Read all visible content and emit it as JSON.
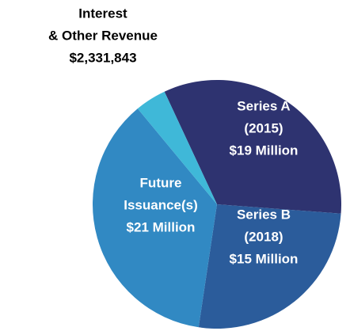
{
  "chart_data": {
    "type": "pie",
    "categories": [
      [
        "Series A",
        "(2015)"
      ],
      [
        "Series B",
        "(2018)"
      ],
      [
        "Future",
        "Issuance(s)"
      ],
      [
        "Interest",
        "& Other Revenue"
      ]
    ],
    "values": [
      19000000,
      15000000,
      21000000,
      2331843
    ],
    "value_labels": [
      "$19 Million",
      "$15 Million",
      "$21 Million",
      "$2,331,843"
    ],
    "colors": [
      "#2e3370",
      "#2b5c9b",
      "#3189c3",
      "#3fb8d8"
    ]
  }
}
